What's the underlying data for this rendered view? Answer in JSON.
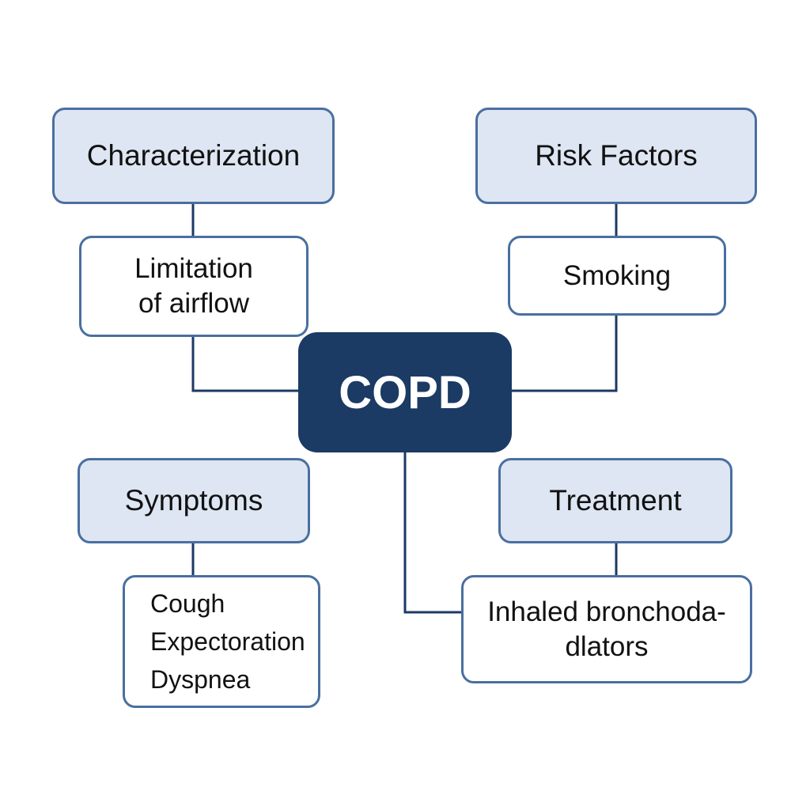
{
  "center": {
    "label": "COPD"
  },
  "branches": [
    {
      "id": "characterization",
      "header": "Characterization",
      "details": [
        "Limitation",
        "of airflow"
      ]
    },
    {
      "id": "risk-factors",
      "header": "Risk Factors",
      "details": [
        "Smoking"
      ]
    },
    {
      "id": "symptoms",
      "header": "Symptoms",
      "details": [
        "Cough",
        "Expectoration",
        "Dyspnea"
      ]
    },
    {
      "id": "treatment",
      "header": "Treatment",
      "details": [
        "Inhaled bronchoda-",
        "dlators"
      ]
    }
  ],
  "colors": {
    "center_fill": "#1b3a64",
    "header_fill": "#dde6f2",
    "border": "#4a6fa0",
    "connector": "#1b3a64"
  }
}
